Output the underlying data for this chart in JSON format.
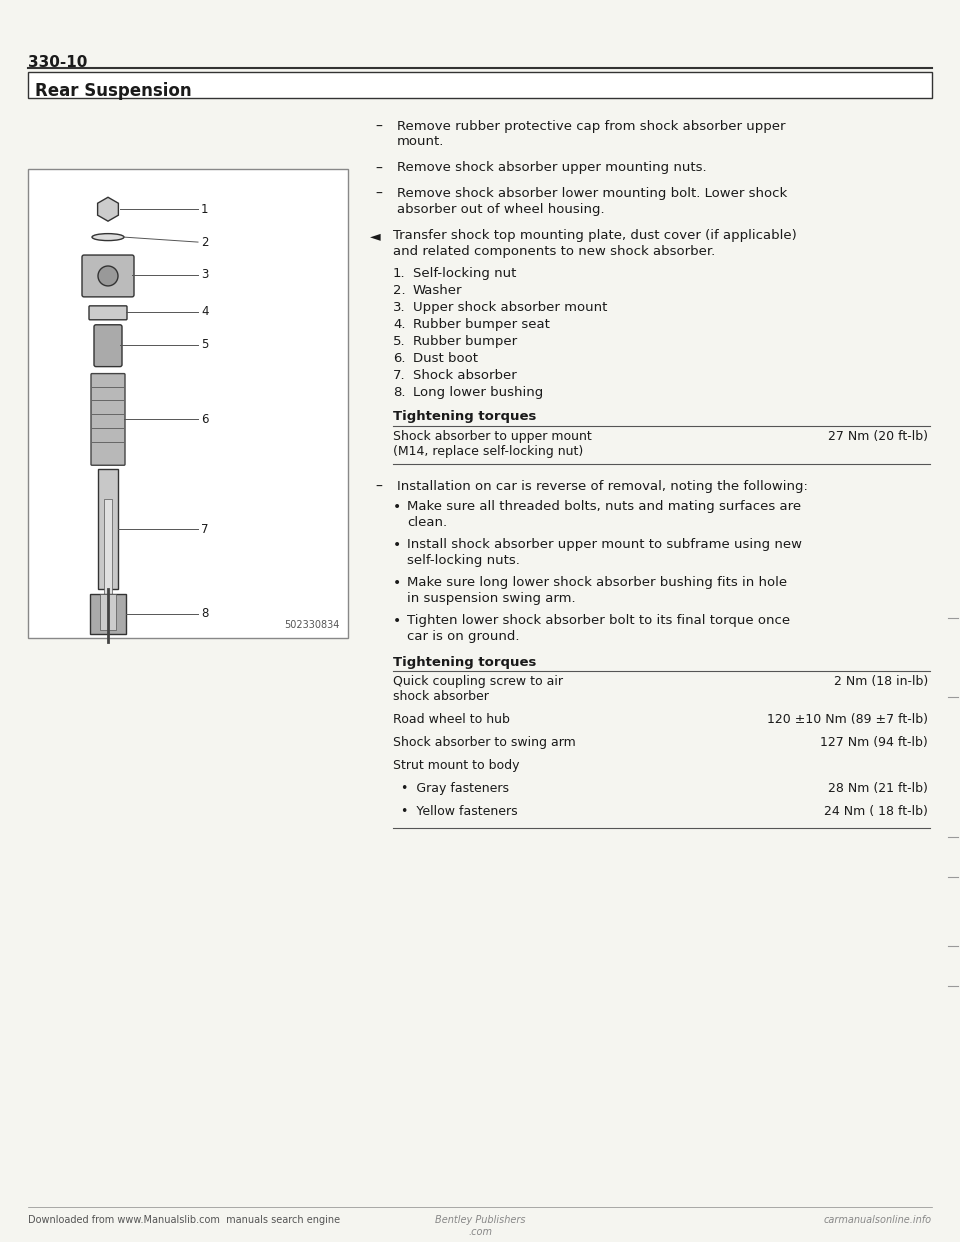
{
  "page_number": "330-10",
  "section_title": "Rear Suspension",
  "background_color": "#f5f5f0",
  "text_color": "#1a1a1a",
  "bullet_items_dash": [
    "Remove rubber protective cap from shock absorber upper\nmount.",
    "Remove shock absorber upper mounting nuts.",
    "Remove shock absorber lower mounting bolt. Lower shock\nabsorber out of wheel housing."
  ],
  "arrow_note": "Transfer shock top mounting plate, dust cover (if applicable)\nand related components to new shock absorber.",
  "numbered_items": [
    "Self-locking nut",
    "Washer",
    "Upper shock absorber mount",
    "Rubber bumper seat",
    "Rubber bumper",
    "Dust boot",
    "Shock absorber",
    "Long lower bushing"
  ],
  "tightening_torques_1_title": "Tightening torques",
  "tightening_torques_1": [
    [
      "Shock absorber to upper mount\n(M14, replace self-locking nut)",
      "27 Nm (20 ft-lb)"
    ]
  ],
  "dash_item_install": "Installation on car is reverse of removal, noting the following:",
  "bullet_items_dot": [
    "Make sure all threaded bolts, nuts and mating surfaces are\nclean.",
    "Install shock absorber upper mount to subframe using new\nself-locking nuts.",
    "Make sure long lower shock absorber bushing fits in hole\nin suspension swing arm.",
    "Tighten lower shock absorber bolt to its final torque once\ncar is on ground."
  ],
  "tightening_torques_2_title": "Tightening torques",
  "tightening_torques_2": [
    [
      "Quick coupling screw to air\nshock absorber",
      "2 Nm (18 in-lb)"
    ],
    [
      "Road wheel to hub",
      "120 ±10 Nm (89 ±7 ft-lb)"
    ],
    [
      "Shock absorber to swing arm",
      "127 Nm (94 ft-lb)"
    ],
    [
      "Strut mount to body",
      ""
    ],
    [
      "  •  Gray fasteners",
      "28 Nm (21 ft-lb)"
    ],
    [
      "  •  Yellow fasteners",
      "24 Nm ( 18 ft-lb)"
    ]
  ],
  "diagram_label": "502330834",
  "diagram_numbers": [
    "1",
    "2",
    "3",
    "4",
    "5",
    "6",
    "7",
    "8"
  ],
  "footer_left": "Downloaded from www.Manualslib.com  manuals search engine",
  "footer_center": "Bentley Publishers\n.com",
  "footer_right": "carmanualsonline.info"
}
